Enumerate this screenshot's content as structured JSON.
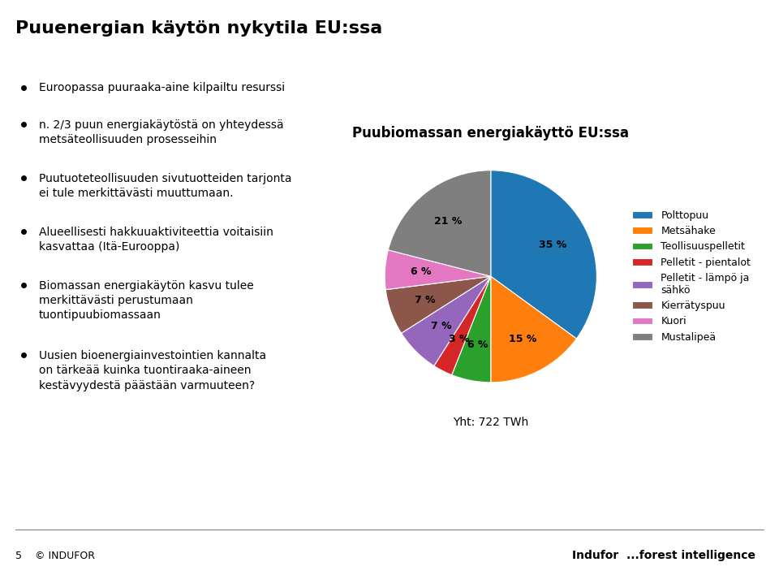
{
  "chart_data": {
    "type": "pie",
    "page_title": "Puuenergian käytön nykytila EU:ssa",
    "title": "Puubiomassan energiakäyttö EU:ssa",
    "categories": [
      "Polttopuu",
      "Metsähake",
      "Teollisuuspelletit",
      "Pelletit - pientalot",
      "Pelletit - lämpö ja\nsähkö",
      "Kierrätyspuu",
      "Kuori",
      "Mustalipeä"
    ],
    "values": [
      35,
      15,
      6,
      3,
      7,
      7,
      6,
      21
    ],
    "value_labels": [
      "35 %",
      "15 %",
      "6 %",
      "3 %",
      "7 %",
      "7 %",
      "6 %",
      "21 %"
    ],
    "data_labels": true,
    "legend": "center left",
    "total_label": "Yht: 722 TWh",
    "bullets": [
      "Euroopassa puuraaka-aine kilpailtu resurssi",
      "n. 2/3 puun energiakäytöstä on yhteydessä\nmetsäteollisuuden prosesseihin",
      "Puutuoteteollisuuden sivutuotteiden tarjonta\nei tule merkittävästi muuttumaan.",
      "Alueellisesti hakkuuaktiviteettia voitaisiin\nkasvattaa (Itä-Eurooppa)",
      "Biomassan energiakäytön kasvu tulee\nmerkittävästi perustumaan\ntuontipuubiomassaan",
      "Uusien bioenergiainvestointien kannalta\non tärkeää kuinka tuontiraaka-aineen\nkestävyydestä päästään varmuuteen?"
    ],
    "footer_left": "5    © INDUFOR",
    "footer_right": "Indufor  ...forest intelligence"
  }
}
